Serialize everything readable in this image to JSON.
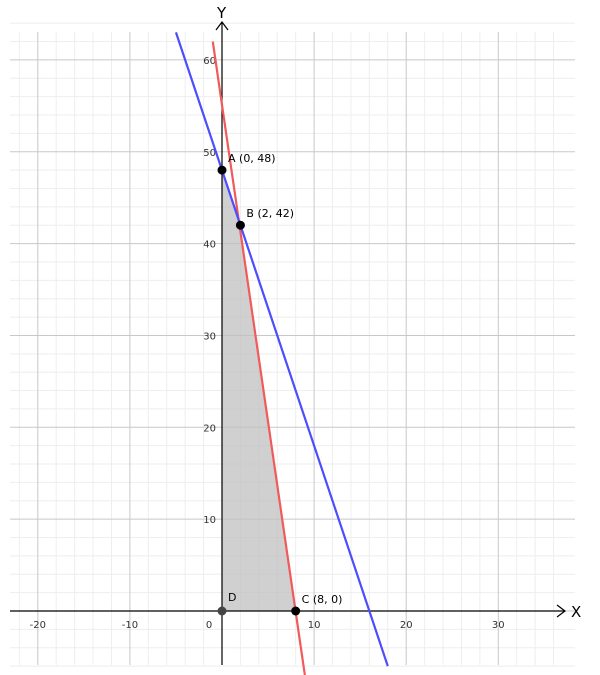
{
  "chart_data": {
    "type": "line",
    "x_axis_label": "X",
    "y_axis_label": "Y",
    "xlim": [
      -22,
      37
    ],
    "ylim": [
      -6,
      64
    ],
    "x_ticks": [
      {
        "value": -20,
        "label": "-20"
      },
      {
        "value": -10,
        "label": "-10"
      },
      {
        "value": 0,
        "label": "0"
      },
      {
        "value": 10,
        "label": "10"
      },
      {
        "value": 20,
        "label": "20"
      },
      {
        "value": 30,
        "label": "30"
      }
    ],
    "y_ticks": [
      {
        "value": 10,
        "label": "10"
      },
      {
        "value": 20,
        "label": "20"
      },
      {
        "value": 30,
        "label": "30"
      },
      {
        "value": 40,
        "label": "40"
      },
      {
        "value": 50,
        "label": "50"
      },
      {
        "value": 60,
        "label": "60"
      }
    ],
    "grid": true,
    "series": [
      {
        "color": "#f05a5a",
        "x": [
          -1,
          9
        ],
        "y": [
          62,
          -7
        ]
      },
      {
        "color": "#4d4dff",
        "x": [
          -5,
          18
        ],
        "y": [
          63,
          -6
        ]
      }
    ],
    "feasible_region": {
      "color": "#c0c0c0",
      "x": [
        0,
        0,
        2,
        8
      ],
      "y": [
        0,
        48,
        42,
        0
      ]
    },
    "points": [
      {
        "label": "A (0, 48)",
        "x": 0,
        "y": 48
      },
      {
        "label": "B (2, 42)",
        "x": 2,
        "y": 42
      },
      {
        "label": "C (8, 0)",
        "x": 8,
        "y": 0
      },
      {
        "label": "D",
        "x": 0,
        "y": 0
      }
    ],
    "point_color_default": "#000000",
    "point_color_origin": "#444444"
  }
}
